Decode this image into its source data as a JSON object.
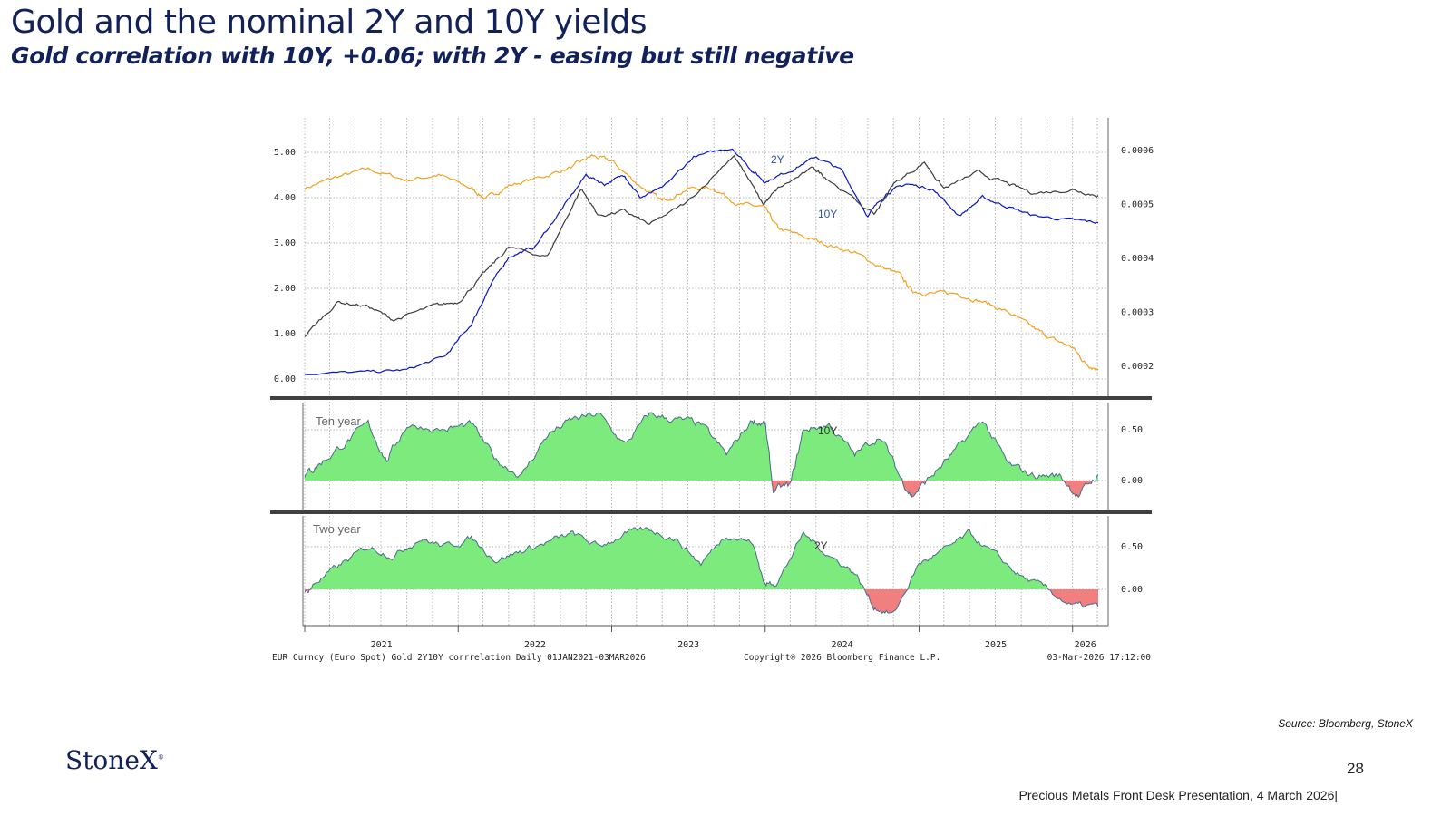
{
  "slide": {
    "title": "Gold and the nominal 2Y and 10Y yields",
    "subtitle": "Gold correlation with 10Y, +0.06; with 2Y - easing but still negative",
    "source": "Source: Bloomberg, StoneX",
    "logo_text": "StoneX",
    "page_number": "28",
    "footer": "Precious Metals Front Desk Presentation, 4 March 2026|"
  },
  "colors": {
    "gold": "#f0a21e",
    "two_year": "#0a14c8",
    "ten_year": "#3c3c3c",
    "positive_fill": "#7dea7d",
    "negative_fill": "#f08080",
    "corr_line": "#4a6a8a",
    "grid": "#9a9a9a",
    "title": "#12215a"
  },
  "chart_data": [
    {
      "type": "line",
      "panel": "yields",
      "x_range": [
        "2021-01-01",
        "2026-03-03"
      ],
      "ylim_left": [
        0,
        5
      ],
      "ylim_right": [
        0.0002,
        0.0006
      ],
      "left_ticks": [
        "0.00",
        "1.00",
        "2.00",
        "3.00",
        "4.00",
        "5.00"
      ],
      "right_ticks": [
        "0.0002",
        "0.0003",
        "0.0004",
        "0.0005",
        "0.0006"
      ],
      "grid": true,
      "labels": [
        {
          "text": "2Y"
        },
        {
          "text": "10Y"
        }
      ],
      "series": [
        {
          "key": "gold",
          "axis": "right",
          "points": [
            [
              "2021-01-01",
              0.00053
            ],
            [
              "2021-03-15",
              0.00055
            ],
            [
              "2021-06-01",
              0.000565
            ],
            [
              "2021-09-01",
              0.000545
            ],
            [
              "2021-11-15",
              0.000555
            ],
            [
              "2022-02-01",
              0.00053
            ],
            [
              "2022-03-08",
              0.00051
            ],
            [
              "2022-05-01",
              0.000535
            ],
            [
              "2022-07-15",
              0.00055
            ],
            [
              "2022-10-01",
              0.00057
            ],
            [
              "2022-11-15",
              0.00059
            ],
            [
              "2023-01-01",
              0.00058
            ],
            [
              "2023-03-01",
              0.00054
            ],
            [
              "2023-05-01",
              0.000505
            ],
            [
              "2023-07-01",
              0.00053
            ],
            [
              "2023-09-01",
              0.00053
            ],
            [
              "2023-11-01",
              0.0005
            ],
            [
              "2023-12-28",
              0.000495
            ],
            [
              "2024-02-01",
              0.000455
            ],
            [
              "2024-04-01",
              0.00044
            ],
            [
              "2024-06-01",
              0.000425
            ],
            [
              "2024-08-01",
              0.00041
            ],
            [
              "2024-10-01",
              0.000385
            ],
            [
              "2024-11-15",
              0.00037
            ],
            [
              "2024-12-15",
              0.00034
            ],
            [
              "2025-02-01",
              0.000335
            ],
            [
              "2025-04-01",
              0.000335
            ],
            [
              "2025-06-01",
              0.00032
            ],
            [
              "2025-08-01",
              0.0003
            ],
            [
              "2025-10-01",
              0.00027
            ],
            [
              "2025-11-15",
              0.00025
            ],
            [
              "2026-01-01",
              0.000235
            ],
            [
              "2026-02-01",
              0.000205
            ],
            [
              "2026-03-03",
              0.000195
            ]
          ]
        },
        {
          "key": "two_year",
          "axis": "left",
          "points": [
            [
              "2021-01-01",
              0.12
            ],
            [
              "2021-06-01",
              0.15
            ],
            [
              "2021-09-01",
              0.2
            ],
            [
              "2021-12-01",
              0.5
            ],
            [
              "2022-02-01",
              1.2
            ],
            [
              "2022-03-15",
              2.0
            ],
            [
              "2022-05-01",
              2.7
            ],
            [
              "2022-07-01",
              2.9
            ],
            [
              "2022-09-01",
              3.7
            ],
            [
              "2022-11-01",
              4.5
            ],
            [
              "2022-12-15",
              4.3
            ],
            [
              "2023-02-01",
              4.5
            ],
            [
              "2023-03-10",
              4.0
            ],
            [
              "2023-05-01",
              4.2
            ],
            [
              "2023-07-15",
              4.9
            ],
            [
              "2023-10-15",
              5.1
            ],
            [
              "2023-12-01",
              4.6
            ],
            [
              "2024-01-01",
              4.35
            ],
            [
              "2024-03-01",
              4.6
            ],
            [
              "2024-05-01",
              4.9
            ],
            [
              "2024-07-01",
              4.6
            ],
            [
              "2024-09-01",
              3.6
            ],
            [
              "2024-10-15",
              4.1
            ],
            [
              "2024-12-01",
              4.3
            ],
            [
              "2025-02-01",
              4.2
            ],
            [
              "2025-04-07",
              3.6
            ],
            [
              "2025-06-01",
              4.0
            ],
            [
              "2025-08-01",
              3.8
            ],
            [
              "2025-10-01",
              3.6
            ],
            [
              "2026-01-01",
              3.5
            ],
            [
              "2026-03-03",
              3.45
            ]
          ]
        },
        {
          "key": "ten_year",
          "axis": "left",
          "points": [
            [
              "2021-01-01",
              0.95
            ],
            [
              "2021-03-20",
              1.7
            ],
            [
              "2021-06-01",
              1.6
            ],
            [
              "2021-08-01",
              1.3
            ],
            [
              "2021-11-01",
              1.6
            ],
            [
              "2022-01-01",
              1.7
            ],
            [
              "2022-03-01",
              2.3
            ],
            [
              "2022-05-01",
              2.9
            ],
            [
              "2022-08-01",
              2.7
            ],
            [
              "2022-10-20",
              4.2
            ],
            [
              "2022-12-01",
              3.6
            ],
            [
              "2023-02-01",
              3.7
            ],
            [
              "2023-04-01",
              3.4
            ],
            [
              "2023-07-01",
              3.9
            ],
            [
              "2023-10-19",
              4.95
            ],
            [
              "2023-12-27",
              3.85
            ],
            [
              "2024-02-01",
              4.2
            ],
            [
              "2024-04-25",
              4.65
            ],
            [
              "2024-06-01",
              4.4
            ],
            [
              "2024-09-16",
              3.62
            ],
            [
              "2024-11-01",
              4.3
            ],
            [
              "2025-01-14",
              4.78
            ],
            [
              "2025-03-01",
              4.2
            ],
            [
              "2025-05-20",
              4.55
            ],
            [
              "2025-08-01",
              4.3
            ],
            [
              "2025-10-01",
              4.1
            ],
            [
              "2026-01-01",
              4.18
            ],
            [
              "2026-03-03",
              4.05
            ]
          ]
        }
      ]
    },
    {
      "type": "area",
      "panel": "corr_10y",
      "title": "Ten year",
      "label": "10Y",
      "x_range": [
        "2021-01-01",
        "2026-03-03"
      ],
      "ylim": [
        -0.4,
        0.75
      ],
      "ticks": [
        "0.50",
        "0.00"
      ],
      "grid": true,
      "points": [
        [
          "2021-01-01",
          0.05
        ],
        [
          "2021-02-01",
          0.15
        ],
        [
          "2021-04-01",
          0.35
        ],
        [
          "2021-06-01",
          0.55
        ],
        [
          "2021-07-15",
          0.2
        ],
        [
          "2021-09-01",
          0.55
        ],
        [
          "2021-12-01",
          0.5
        ],
        [
          "2022-02-01",
          0.55
        ],
        [
          "2022-04-01",
          0.2
        ],
        [
          "2022-06-01",
          0.05
        ],
        [
          "2022-08-01",
          0.45
        ],
        [
          "2022-10-01",
          0.6
        ],
        [
          "2022-12-01",
          0.65
        ],
        [
          "2023-02-01",
          0.35
        ],
        [
          "2023-04-01",
          0.65
        ],
        [
          "2023-06-01",
          0.6
        ],
        [
          "2023-08-01",
          0.55
        ],
        [
          "2023-10-01",
          0.25
        ],
        [
          "2023-12-01",
          0.6
        ],
        [
          "2024-01-01",
          0.55
        ],
        [
          "2024-01-20",
          -0.1
        ],
        [
          "2024-03-01",
          -0.05
        ],
        [
          "2024-04-01",
          0.5
        ],
        [
          "2024-06-01",
          0.55
        ],
        [
          "2024-08-01",
          0.25
        ],
        [
          "2024-10-01",
          0.45
        ],
        [
          "2024-11-15",
          0.05
        ],
        [
          "2024-12-15",
          -0.15
        ],
        [
          "2025-02-01",
          0.05
        ],
        [
          "2025-04-01",
          0.3
        ],
        [
          "2025-06-01",
          0.6
        ],
        [
          "2025-08-01",
          0.15
        ],
        [
          "2025-10-01",
          0.05
        ],
        [
          "2025-12-01",
          0.05
        ],
        [
          "2026-01-15",
          -0.15
        ],
        [
          "2026-03-03",
          0.06
        ]
      ]
    },
    {
      "type": "area",
      "panel": "corr_2y",
      "title": "Two year",
      "label": "2Y",
      "x_range": [
        "2021-01-01",
        "2026-03-03"
      ],
      "ylim": [
        -0.45,
        0.75
      ],
      "ticks": [
        "0.50",
        "0.00"
      ],
      "x_ticks": [
        "2021",
        "2022",
        "2023",
        "2024",
        "2025",
        "2026"
      ],
      "grid": true,
      "points": [
        [
          "2021-01-01",
          -0.05
        ],
        [
          "2021-02-01",
          0.1
        ],
        [
          "2021-04-01",
          0.3
        ],
        [
          "2021-06-01",
          0.5
        ],
        [
          "2021-08-01",
          0.4
        ],
        [
          "2021-10-01",
          0.6
        ],
        [
          "2021-12-01",
          0.5
        ],
        [
          "2022-02-01",
          0.6
        ],
        [
          "2022-04-01",
          0.35
        ],
        [
          "2022-06-01",
          0.45
        ],
        [
          "2022-08-01",
          0.55
        ],
        [
          "2022-10-01",
          0.65
        ],
        [
          "2022-12-01",
          0.5
        ],
        [
          "2023-02-01",
          0.65
        ],
        [
          "2023-04-01",
          0.7
        ],
        [
          "2023-06-01",
          0.6
        ],
        [
          "2023-08-01",
          0.3
        ],
        [
          "2023-10-01",
          0.65
        ],
        [
          "2023-12-01",
          0.55
        ],
        [
          "2024-01-01",
          0.05
        ],
        [
          "2024-02-01",
          0.1
        ],
        [
          "2024-04-01",
          0.65
        ],
        [
          "2024-06-01",
          0.4
        ],
        [
          "2024-08-01",
          0.2
        ],
        [
          "2024-09-15",
          -0.2
        ],
        [
          "2024-11-01",
          -0.3
        ],
        [
          "2025-01-01",
          0.3
        ],
        [
          "2025-03-01",
          0.45
        ],
        [
          "2025-05-01",
          0.65
        ],
        [
          "2025-07-01",
          0.4
        ],
        [
          "2025-09-01",
          0.15
        ],
        [
          "2025-11-01",
          0.0
        ],
        [
          "2026-01-01",
          -0.2
        ],
        [
          "2026-03-03",
          -0.2
        ]
      ]
    }
  ],
  "chart_footer": {
    "left": "EUR Curncy (Euro Spot) Gold 2Y10Y corrrelation Daily 01JAN2021-03MAR2026",
    "center": "Copyright® 2026 Bloomberg Finance L.P.",
    "right": "03-Mar-2026 17:12:00"
  }
}
